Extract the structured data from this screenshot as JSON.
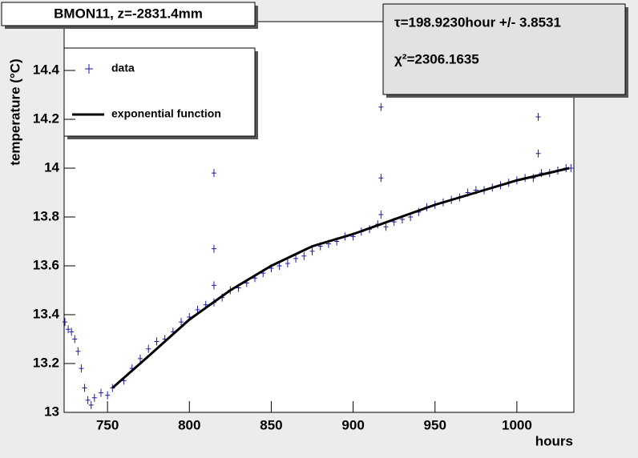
{
  "chart_data": {
    "type": "scatter",
    "title": "BMON11, z=-2831.4mm",
    "annotations": [
      "τ=198.9230hour +/- 3.8531",
      "χ²=2306.1635"
    ],
    "x_label": "hours",
    "y_label": "temperature (°C)",
    "xlim": [
      723.5,
      1034.8
    ],
    "ylim": [
      13,
      14.6
    ],
    "xticks": [
      750,
      800,
      850,
      900,
      950,
      1000
    ],
    "yticks": [
      13,
      13.2,
      13.4,
      13.6,
      13.8,
      14,
      14.2,
      14.4
    ],
    "series": [
      {
        "name": "data",
        "color": "#1a1aa8",
        "x": [
          724,
          726,
          728,
          730,
          732,
          734,
          736,
          738,
          740,
          742,
          746,
          750,
          753,
          760,
          765,
          770,
          775,
          780,
          785,
          790,
          795,
          800,
          805,
          810,
          815,
          815,
          815,
          815,
          820,
          825,
          830,
          835,
          840,
          845,
          850,
          855,
          860,
          865,
          870,
          875,
          880,
          885,
          890,
          895,
          900,
          905,
          910,
          915,
          917,
          917,
          917,
          920,
          925,
          930,
          935,
          940,
          945,
          950,
          955,
          960,
          965,
          970,
          975,
          980,
          985,
          990,
          995,
          1000,
          1005,
          1010,
          1013,
          1013,
          1015,
          1020,
          1025,
          1030,
          1033
        ],
        "values": [
          13.37,
          13.34,
          13.33,
          13.3,
          13.25,
          13.18,
          13.1,
          13.05,
          13.03,
          13.06,
          13.08,
          13.07,
          13.1,
          13.13,
          13.18,
          13.22,
          13.26,
          13.29,
          13.3,
          13.33,
          13.37,
          13.39,
          13.42,
          13.44,
          13.45,
          13.98,
          13.67,
          13.52,
          13.47,
          13.5,
          13.51,
          13.53,
          13.55,
          13.57,
          13.59,
          13.6,
          13.61,
          13.63,
          13.64,
          13.66,
          13.68,
          13.69,
          13.7,
          13.72,
          13.72,
          13.74,
          13.75,
          13.77,
          14.25,
          13.96,
          13.81,
          13.76,
          13.78,
          13.79,
          13.8,
          13.82,
          13.84,
          13.85,
          13.86,
          13.87,
          13.88,
          13.9,
          13.91,
          13.91,
          13.92,
          13.93,
          13.94,
          13.95,
          13.96,
          13.96,
          14.21,
          14.06,
          13.98,
          13.98,
          13.99,
          14.0,
          14.0
        ]
      },
      {
        "name": "exponential function",
        "color": "#000000",
        "line": true,
        "x": [
          753,
          775,
          800,
          825,
          850,
          875,
          900,
          925,
          950,
          975,
          1000,
          1032
        ],
        "values": [
          13.1,
          13.23,
          13.38,
          13.5,
          13.6,
          13.68,
          13.73,
          13.79,
          13.85,
          13.9,
          13.95,
          14.0
        ]
      }
    ]
  }
}
